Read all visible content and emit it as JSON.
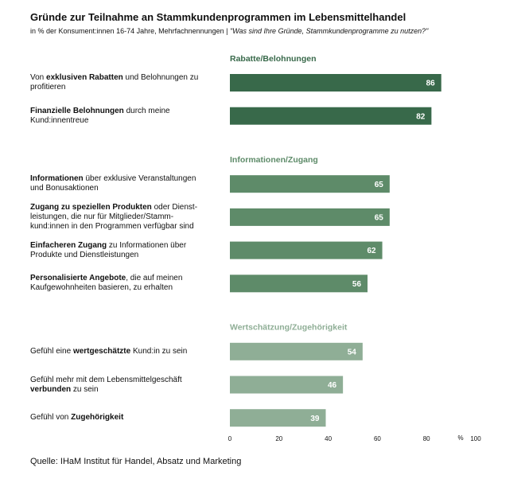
{
  "chart_data": {
    "type": "bar",
    "orientation": "horizontal",
    "title": "Gründe zur Teilnahme an Stammkundenprogrammen  im Lebensmittelhandel",
    "subtitle": [
      {
        "text": "in % der Konsument:innen 16-74 Jahre, Mehrfachnennungen | "
      },
      {
        "text": "\"Was sind Ihre Gründe, Stammkundenprogramme zu nutzen?\"",
        "italic": true
      }
    ],
    "groups": [
      {
        "name": "Rabatte/Belohnungen",
        "color": "#38694a",
        "categories": [
          [
            {
              "text": "Von "
            },
            {
              "text": "exklusiven Rabatten",
              "bold": true
            },
            {
              "text": " und Belohnungen zu profitieren"
            }
          ],
          [
            {
              "text": "Finanzielle Belohnungen",
              "bold": true
            },
            {
              "text": " durch meine Kund:innentreue"
            }
          ]
        ],
        "values": [
          86,
          82
        ]
      },
      {
        "name": "Informationen/Zugang",
        "color": "#5e8b69",
        "categories": [
          [
            {
              "text": "Informationen",
              "bold": true
            },
            {
              "text": " über exklusive Veranstaltungen und Bonusaktionen"
            }
          ],
          [
            {
              "text": "Zugang zu speziellen Produkten",
              "bold": true
            },
            {
              "text": " oder Dienst-leistungen, die nur für Mitglieder/Stamm-kund:innen in den Programmen verfügbar sind"
            }
          ],
          [
            {
              "text": "Einfacheren Zugang",
              "bold": true
            },
            {
              "text": " zu Informationen über Produkte und Dienstleistungen"
            }
          ],
          [
            {
              "text": "Personalisierte Angebote",
              "bold": true
            },
            {
              "text": ", die auf meinen Kaufgewohnheiten basieren, zu erhalten"
            }
          ]
        ],
        "values": [
          65,
          65,
          62,
          56
        ]
      },
      {
        "name": "Wertschätzung/Zugehörigkeit",
        "color": "#8fae96",
        "categories": [
          [
            {
              "text": "Gefühl eine "
            },
            {
              "text": "wertgeschätzte",
              "bold": true
            },
            {
              "text": " Kund:in zu sein"
            }
          ],
          [
            {
              "text": "Gefühl mehr mit dem Lebensmittelgeschäft "
            },
            {
              "text": "verbunden",
              "bold": true
            },
            {
              "text": " zu sein"
            }
          ],
          [
            {
              "text": "Gefühl von "
            },
            {
              "text": "Zugehörigkeit",
              "bold": true
            }
          ]
        ],
        "values": [
          54,
          46,
          39
        ]
      }
    ],
    "xlim": [
      0,
      100
    ],
    "xticks": [
      0,
      20,
      40,
      60,
      80,
      100
    ],
    "x_label": "%"
  },
  "source": "Quelle: IHaM Institut für Handel, Absatz und Marketing"
}
